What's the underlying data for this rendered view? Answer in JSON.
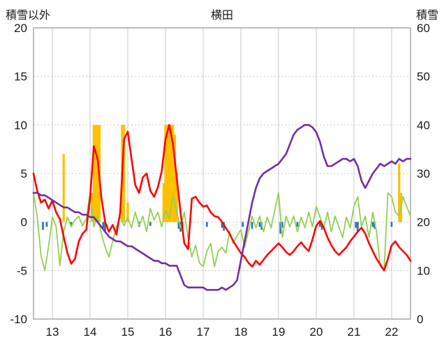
{
  "chart_data": {
    "type": "line",
    "title": "横田",
    "left_axis": {
      "label": "積雪以外",
      "min": -10,
      "max": 20,
      "ticks": [
        -10,
        -5,
        0,
        5,
        10,
        15,
        20
      ]
    },
    "right_axis": {
      "label": "積雪",
      "min": 0,
      "max": 60,
      "ticks": [
        0,
        10,
        20,
        30,
        40,
        50,
        60
      ]
    },
    "x_axis": {
      "min": 12.5,
      "max": 22.5,
      "ticks": [
        13,
        14,
        15,
        16,
        17,
        18,
        19,
        20,
        21,
        22
      ]
    },
    "grid": true,
    "legend": "none",
    "colors": {
      "grid": "#c8c8c8",
      "border": "#9a9a9a",
      "text": "#1a1a1a"
    },
    "series": [
      {
        "name": "orange-bars",
        "type": "bar",
        "axis": "left",
        "color": "#FFC000",
        "bar_width": 0.06,
        "x": [
          13.3,
          14.05,
          14.1,
          14.15,
          14.2,
          14.25,
          14.85,
          14.9,
          15.0,
          15.95,
          16.0,
          16.05,
          16.1,
          16.15,
          16.2,
          16.25,
          16.3,
          22.2,
          22.25
        ],
        "y": [
          7,
          3,
          10,
          10,
          10,
          10,
          10,
          10,
          2,
          4,
          10,
          10,
          10,
          10,
          10,
          9,
          5,
          6,
          3
        ]
      },
      {
        "name": "blue-bars",
        "type": "bar",
        "axis": "left",
        "color": "#2E75B6",
        "bar_width": 0.05,
        "x": [
          12.75,
          12.85,
          13.5,
          14.35,
          14.4,
          15.3,
          15.6,
          16.35,
          16.4,
          16.45,
          17.1,
          17.5,
          17.55,
          18.05,
          18.3,
          18.5,
          18.55,
          19.05,
          19.1,
          19.5,
          20.1,
          20.15,
          21.05,
          21.1,
          21.5,
          21.55,
          22.0
        ],
        "y": [
          -0.8,
          -0.5,
          -0.4,
          -0.6,
          -0.9,
          -0.5,
          -0.4,
          -0.7,
          -1,
          -0.6,
          -0.5,
          -0.6,
          -0.9,
          -0.5,
          -0.7,
          -0.5,
          -0.8,
          -1.2,
          -0.6,
          -0.5,
          -0.5,
          -0.8,
          -0.6,
          -1,
          -0.5,
          -0.7,
          -0.5
        ]
      },
      {
        "name": "green-line",
        "type": "line",
        "axis": "left",
        "color": "#92D050",
        "width": 1.8,
        "x_start": 12.5,
        "x_step": 0.1,
        "y": [
          3,
          0.5,
          -3.5,
          -5,
          -2.5,
          0.5,
          -0.5,
          -4.5,
          -1,
          0.5,
          -0.5,
          0.2,
          0.6,
          -0.4,
          0.3,
          3,
          -0.5,
          0.6,
          -1.2,
          -2.6,
          -3.6,
          -2,
          -0.5,
          0.6,
          -0.4,
          0.5,
          -0.6,
          1,
          -0.4,
          0.6,
          -1,
          1.4,
          0.2,
          1,
          -0.5,
          1.2,
          0.4,
          2.6,
          1,
          -0.6,
          1,
          -1.6,
          -3.6,
          -2.4,
          -4.2,
          -4.6,
          -3,
          -2.2,
          -4.6,
          -3,
          -2.6,
          -3.2,
          -1,
          -2.2,
          -1.4,
          -0.8,
          -2.6,
          -1,
          0.6,
          -0.6,
          0.6,
          -1,
          0.5,
          -0.6,
          1.2,
          3,
          -1.6,
          0.6,
          -0.5,
          0.6,
          -1,
          0.5,
          -0.6,
          1,
          -0.5,
          1.6,
          0.5,
          -0.6,
          1,
          -1,
          0.6,
          -0.5,
          -1.6,
          0.5,
          -0.6,
          1.6,
          2.6,
          -0.5,
          0.6,
          -1.6,
          1,
          -1,
          -4.6,
          -5,
          3,
          2.6,
          1,
          0.6,
          2.6,
          1.6,
          0.6
        ]
      },
      {
        "name": "red-line",
        "type": "line",
        "axis": "left",
        "color": "#FF0000",
        "width": 2.6,
        "x_start": 12.5,
        "x_step": 0.1,
        "y": [
          5,
          3.2,
          2,
          2.3,
          1.4,
          2.2,
          1,
          0.3,
          -1.5,
          -3.2,
          -4.3,
          -3.8,
          -2,
          -1.2,
          -0.8,
          2.5,
          7.8,
          6.5,
          2.5,
          0,
          -1,
          -0.3,
          -1.3,
          1,
          8.5,
          9.3,
          6.5,
          3.8,
          3,
          4.6,
          5,
          3.2,
          2.6,
          3.6,
          5.2,
          8.5,
          10,
          8,
          4.5,
          1,
          -2.2,
          -2.8,
          2.4,
          2.6,
          2,
          1.6,
          1.7,
          1,
          0.6,
          0.5,
          0,
          -0.6,
          -1.2,
          -2,
          -2.6,
          -3.2,
          -3.6,
          -4.2,
          -4.6,
          -4,
          -4.4,
          -3.9,
          -3.4,
          -3,
          -2.6,
          -2.2,
          -2.6,
          -3.1,
          -3.4,
          -3,
          -2.5,
          -2.1,
          -2.6,
          -3,
          -1.8,
          -0.4,
          0.1,
          -0.6,
          -1.6,
          -2.4,
          -3,
          -3.4,
          -3,
          -2.6,
          -2,
          -1.5,
          -1,
          -0.6,
          -1.2,
          -2.2,
          -3,
          -3.8,
          -4.4,
          -5,
          -3.8,
          -2.4,
          -2,
          -2.6,
          -3,
          -3.4,
          -4
        ]
      },
      {
        "name": "purple-line",
        "type": "line",
        "axis": "right",
        "color": "#7030A0",
        "width": 2.6,
        "x_start": 12.5,
        "x_step": 0.1,
        "y": [
          26,
          26,
          25.5,
          25.5,
          25,
          24.5,
          24,
          23.5,
          23,
          23,
          22.5,
          22,
          22,
          21.5,
          21.5,
          21,
          21,
          20,
          19,
          18,
          17,
          16.5,
          16,
          16,
          15.5,
          15,
          15,
          14.5,
          14,
          13.5,
          13,
          12.5,
          12,
          12,
          11.5,
          11.5,
          11,
          11,
          11,
          9,
          7,
          6.5,
          6.5,
          6.5,
          6.5,
          6.5,
          6,
          6,
          6,
          6,
          6.5,
          6,
          6.5,
          7,
          8,
          12,
          16,
          20,
          24,
          27,
          29,
          30,
          30.5,
          31,
          31.5,
          32,
          33,
          34,
          36,
          38,
          39,
          39.5,
          40,
          40,
          39.5,
          38.5,
          36.5,
          33.5,
          31.5,
          31.5,
          32,
          32.5,
          33,
          33,
          32.5,
          33,
          31.5,
          28.5,
          27,
          28.5,
          30,
          31,
          32,
          31.5,
          32,
          32.5,
          32,
          33,
          32.5,
          33,
          33
        ]
      }
    ]
  }
}
